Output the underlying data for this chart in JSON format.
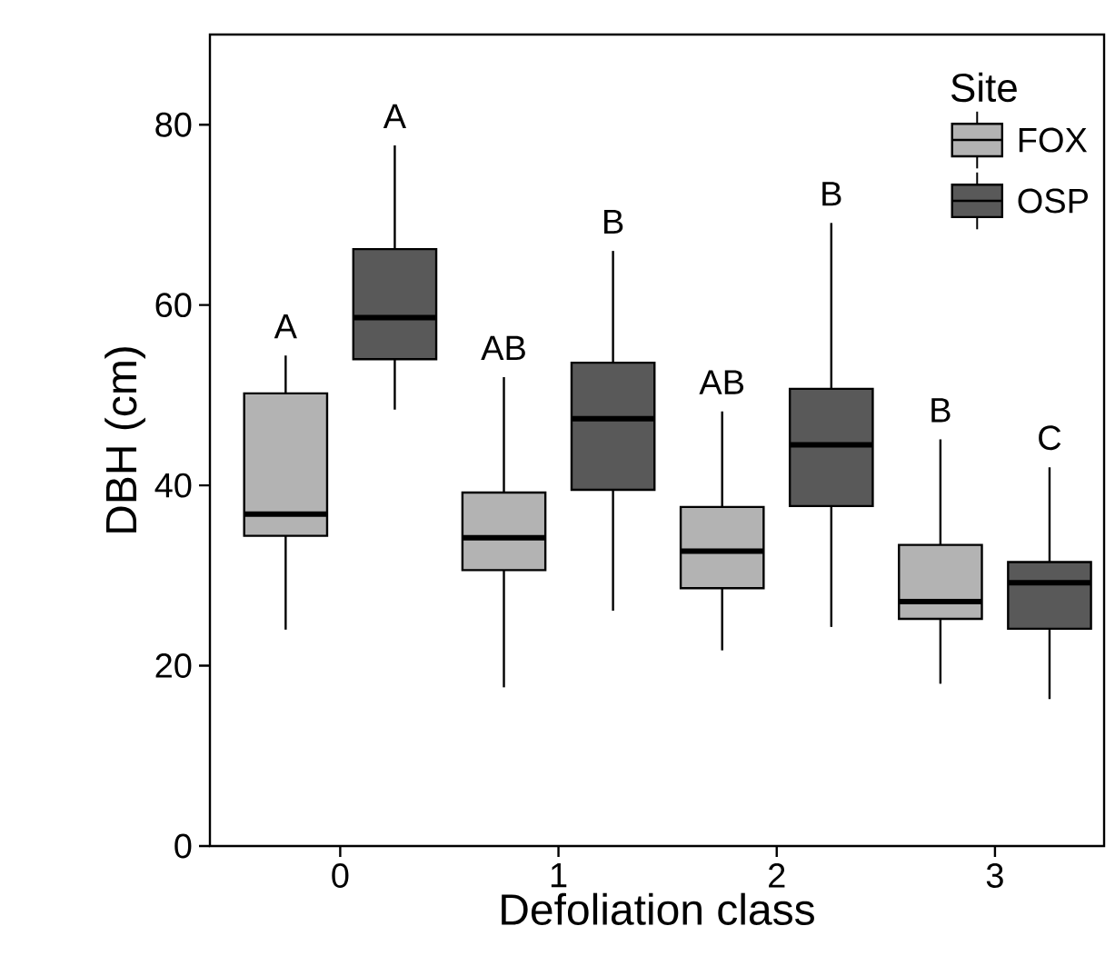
{
  "chart_data": {
    "type": "box",
    "xlabel": "Defoliation class",
    "ylabel": "DBH (cm)",
    "legend_title": "Site",
    "legend": "top right",
    "categories": [
      "0",
      "1",
      "2",
      "3"
    ],
    "ylim": [
      0,
      90
    ],
    "yticks": [
      0,
      20,
      40,
      60,
      80
    ],
    "series": [
      {
        "name": "FOX",
        "color": "#b3b3b3",
        "boxes": [
          {
            "low": 24,
            "q1": 34.4,
            "median": 36.8,
            "q3": 50.2,
            "high": 54.4
          },
          {
            "low": 17.6,
            "q1": 30.6,
            "median": 34.2,
            "q3": 39.2,
            "high": 52
          },
          {
            "low": 21.7,
            "q1": 28.6,
            "median": 32.7,
            "q3": 37.6,
            "high": 48.2
          },
          {
            "low": 18,
            "q1": 25.2,
            "median": 27.1,
            "q3": 33.4,
            "high": 45.1
          }
        ]
      },
      {
        "name": "OSP",
        "color": "#595959",
        "boxes": [
          {
            "low": 48.4,
            "q1": 54,
            "median": 58.6,
            "q3": 66.2,
            "high": 77.7
          },
          {
            "low": 26.1,
            "q1": 39.5,
            "median": 47.4,
            "q3": 53.6,
            "high": 66
          },
          {
            "low": 24.3,
            "q1": 37.7,
            "median": 44.5,
            "q3": 50.7,
            "high": 69.1
          },
          {
            "low": 16.3,
            "q1": 24.1,
            "median": 29.2,
            "q3": 31.5,
            "high": 42
          }
        ]
      }
    ],
    "annotations": [
      "A",
      "A",
      "AB",
      "B",
      "AB",
      "B",
      "B",
      "C"
    ]
  }
}
